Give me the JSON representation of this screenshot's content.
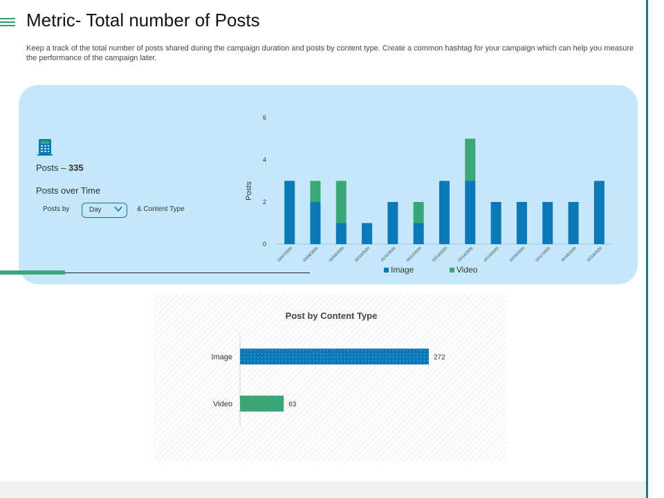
{
  "header": {
    "title": "Metric- Total number of Posts",
    "description": "Keep a track of the total number of posts shared during the campaign duration and posts by content type. Create a common hashtag for your campaign which can help you measure the performance of the campaign later."
  },
  "panel": {
    "posts_label": "Posts –",
    "posts_value": "335",
    "over_time_label": "Posts over Time",
    "posts_by_label": "Posts by",
    "dropdown_value": "Day",
    "content_type_label": "& Content Type"
  },
  "colors": {
    "image": "#0b78b8",
    "video": "#3aa876",
    "panel": "#c4e8f9"
  },
  "chart_data": [
    {
      "type": "bar",
      "stacked": true,
      "ylabel": "Posts",
      "ylim": [
        0,
        6
      ],
      "yticks": [
        0,
        2,
        4,
        6
      ],
      "categories": [
        "02/07/2020",
        "02/08/2020",
        "02/09/2020",
        "02/10/2020",
        "02/11/2020",
        "02/12/2020",
        "02/13/2020",
        "02/14/2020",
        "02/15/2020",
        "02/16/2020",
        "02/17/2020",
        "02/18/2020",
        "02/19/2020"
      ],
      "series": [
        {
          "name": "Image",
          "values": [
            3,
            2,
            1,
            1,
            2,
            1,
            3,
            3,
            2,
            2,
            2,
            2,
            3
          ]
        },
        {
          "name": "Video",
          "values": [
            0,
            1,
            2,
            0,
            0,
            1,
            0,
            2,
            0,
            0,
            0,
            0,
            0
          ]
        }
      ],
      "legend": "bottom"
    },
    {
      "type": "bar",
      "orientation": "horizontal",
      "title": "Post by Content Type",
      "categories": [
        "Image",
        "Video"
      ],
      "values": [
        272,
        63
      ]
    }
  ]
}
